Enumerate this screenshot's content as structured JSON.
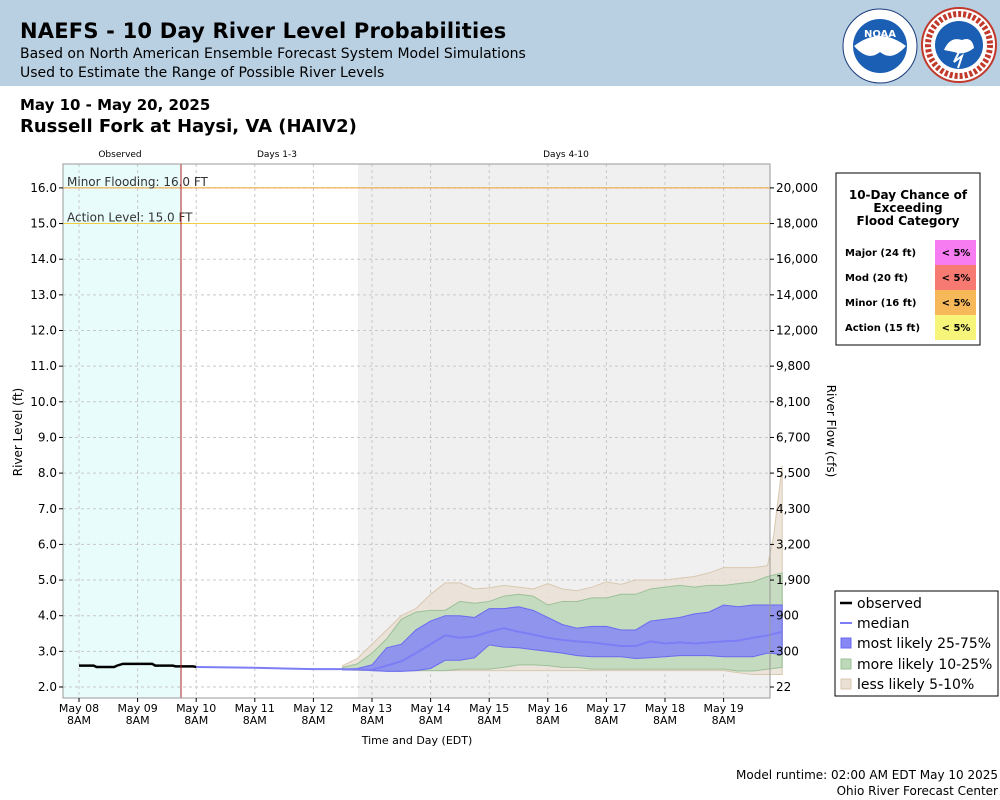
{
  "header": {
    "title": "NAEFS - 10 Day River Level Probabilities",
    "subtitle1": "Based on North American Ensemble Forecast System Model Simulations",
    "subtitle2": "Used to Estimate the Range of Possible River Levels",
    "date_range": "May 10 - May 20, 2025",
    "station": "Russell Fork at Haysi, VA (HAIV2)"
  },
  "logos": {
    "noara": "NOAA",
    "nws": "NATIONAL WEATHER SERVICE"
  },
  "footer": {
    "runtime": "Model runtime: 02:00 AM EDT May 10 2025",
    "center": "Ohio River Forecast Center"
  },
  "colors": {
    "observed_bg": "#e8fcfc",
    "forecast_bg": "#f0f0f0",
    "band_25_75": "#8787f5",
    "band_10_25": "#bcd8b8",
    "band_5_10": "#eae0d4",
    "median": "#7d7df5",
    "observed": "#000000",
    "minor_line": "#f0a030",
    "action_line": "#f0d040",
    "now_line": "#b02020"
  },
  "chart_data": {
    "type": "area",
    "ylabel": "River Level (ft)",
    "y2label": "River Flow (cfs)",
    "xlabel": "Time and Day (EDT)",
    "ylim": [
      1.75,
      17.0
    ],
    "xlim_days": [
      0,
      12
    ],
    "grid": true,
    "sections": [
      {
        "label": "Observed"
      },
      {
        "label": "Days 1-3"
      },
      {
        "label": "Days 4-10"
      }
    ],
    "y_ticks": [
      2.0,
      3.0,
      4.0,
      5.0,
      6.0,
      7.0,
      8.0,
      9.0,
      10.0,
      11.0,
      12.0,
      13.0,
      14.0,
      15.0,
      16.0
    ],
    "y_tick_labels": [
      "2.0",
      "3.0",
      "4.0",
      "5.0",
      "6.0",
      "7.0",
      "8.0",
      "9.0",
      "10.0",
      "11.0",
      "12.0",
      "13.0",
      "14.0",
      "15.0",
      "16.0"
    ],
    "y2_tick_labels": [
      "22",
      "300",
      "900",
      "1,900",
      "3,200",
      "4,300",
      "5,500",
      "6,700",
      "8,100",
      "9,800",
      "12,000",
      "14,000",
      "16,000",
      "18,000",
      "20,000"
    ],
    "x_ticks": [
      {
        "day": "May 08",
        "time": "8AM"
      },
      {
        "day": "May 09",
        "time": "8AM"
      },
      {
        "day": "May 10",
        "time": "8AM"
      },
      {
        "day": "May 11",
        "time": "8AM"
      },
      {
        "day": "May 12",
        "time": "8AM"
      },
      {
        "day": "May 13",
        "time": "8AM"
      },
      {
        "day": "May 14",
        "time": "8AM"
      },
      {
        "day": "May 15",
        "time": "8AM"
      },
      {
        "day": "May 16",
        "time": "8AM"
      },
      {
        "day": "May 17",
        "time": "8AM"
      },
      {
        "day": "May 18",
        "time": "8AM"
      },
      {
        "day": "May 19",
        "time": "8AM"
      }
    ],
    "thresholds": [
      {
        "name": "Minor Flooding: 16.0 FT",
        "value": 16.0
      },
      {
        "name": "Action Level: 15.0 FT",
        "value": 15.0
      }
    ],
    "observed": {
      "name": "observed",
      "x": [
        0,
        0.25,
        0.3,
        0.6,
        0.65,
        0.75,
        0.95,
        1.0,
        1.25,
        1.3,
        1.6,
        1.65,
        1.95,
        2.0
      ],
      "y": [
        2.6,
        2.6,
        2.56,
        2.56,
        2.6,
        2.65,
        2.65,
        2.65,
        2.65,
        2.6,
        2.6,
        2.58,
        2.58,
        2.56
      ]
    },
    "median": {
      "name": "median",
      "x": [
        2.0,
        2.5,
        3.0,
        3.5,
        4.0,
        4.5,
        5.0,
        5.25,
        5.5,
        5.75,
        6.0,
        6.25,
        6.5,
        6.75,
        7.0,
        7.25,
        7.5,
        7.75,
        8.0,
        8.25,
        8.5,
        8.75,
        9.0,
        9.25,
        9.5,
        9.75,
        10.0,
        10.25,
        10.5,
        10.75,
        11.0,
        11.25,
        11.5,
        11.75,
        12.0
      ],
      "y": [
        2.56,
        2.55,
        2.54,
        2.52,
        2.5,
        2.5,
        2.48,
        2.6,
        2.72,
        2.95,
        3.2,
        3.45,
        3.38,
        3.42,
        3.55,
        3.65,
        3.55,
        3.47,
        3.38,
        3.32,
        3.28,
        3.25,
        3.2,
        3.15,
        3.15,
        3.28,
        3.22,
        3.25,
        3.22,
        3.25,
        3.28,
        3.3,
        3.38,
        3.45,
        3.55
      ]
    },
    "bands": [
      {
        "name": "less likely 5-10%",
        "x": [
          4.5,
          4.75,
          5.0,
          5.25,
          5.5,
          5.75,
          6.0,
          6.25,
          6.5,
          6.75,
          7.0,
          7.25,
          7.5,
          7.75,
          8.0,
          8.25,
          8.5,
          8.75,
          9.0,
          9.25,
          9.5,
          9.75,
          10.0,
          10.25,
          10.5,
          10.75,
          11.0,
          11.25,
          11.5,
          11.75,
          11.85,
          12.0
        ],
        "upper": [
          2.6,
          2.8,
          3.2,
          3.6,
          4.0,
          4.2,
          4.6,
          4.92,
          4.92,
          4.75,
          4.78,
          4.85,
          4.8,
          4.75,
          4.9,
          4.75,
          4.7,
          4.8,
          4.95,
          4.88,
          5.0,
          5.0,
          5.0,
          5.05,
          5.1,
          5.2,
          5.35,
          5.35,
          5.35,
          5.4,
          6.2,
          8.2
        ],
        "lower": [
          2.48,
          2.47,
          2.46,
          2.46,
          2.46,
          2.46,
          2.46,
          2.46,
          2.46,
          2.46,
          2.46,
          2.46,
          2.46,
          2.46,
          2.46,
          2.46,
          2.46,
          2.46,
          2.46,
          2.46,
          2.46,
          2.46,
          2.46,
          2.46,
          2.46,
          2.46,
          2.46,
          2.4,
          2.35,
          2.35,
          2.35,
          2.35
        ]
      },
      {
        "name": "more likely 10-25%",
        "x": [
          4.5,
          4.75,
          5.0,
          5.25,
          5.5,
          5.75,
          6.0,
          6.25,
          6.5,
          6.75,
          7.0,
          7.25,
          7.5,
          7.75,
          8.0,
          8.25,
          8.5,
          8.75,
          9.0,
          9.25,
          9.5,
          9.75,
          10.0,
          10.25,
          10.5,
          10.75,
          11.0,
          11.25,
          11.5,
          11.75,
          12.0
        ],
        "upper": [
          2.55,
          2.65,
          2.95,
          3.35,
          3.9,
          4.1,
          4.15,
          4.15,
          4.4,
          4.35,
          4.4,
          4.55,
          4.6,
          4.55,
          4.3,
          4.4,
          4.4,
          4.5,
          4.5,
          4.6,
          4.6,
          4.75,
          4.8,
          4.85,
          4.8,
          4.85,
          4.85,
          4.9,
          4.95,
          5.1,
          5.2
        ],
        "lower": [
          2.48,
          2.47,
          2.46,
          2.46,
          2.46,
          2.46,
          2.46,
          2.46,
          2.5,
          2.5,
          2.5,
          2.55,
          2.62,
          2.62,
          2.6,
          2.55,
          2.55,
          2.5,
          2.5,
          2.5,
          2.5,
          2.5,
          2.5,
          2.5,
          2.5,
          2.5,
          2.5,
          2.45,
          2.45,
          2.5,
          2.55
        ]
      },
      {
        "name": "most likely 25-75%",
        "x": [
          4.5,
          4.75,
          5.0,
          5.25,
          5.5,
          5.75,
          6.0,
          6.25,
          6.5,
          6.75,
          7.0,
          7.25,
          7.5,
          7.75,
          8.0,
          8.25,
          8.5,
          8.75,
          9.0,
          9.25,
          9.5,
          9.75,
          10.0,
          10.25,
          10.5,
          10.75,
          11.0,
          11.25,
          11.5,
          11.75,
          12.0
        ],
        "upper": [
          2.5,
          2.52,
          2.62,
          3.1,
          3.2,
          3.6,
          3.85,
          4.0,
          4.0,
          3.95,
          4.2,
          4.2,
          4.25,
          4.15,
          3.95,
          3.75,
          3.65,
          3.7,
          3.7,
          3.6,
          3.6,
          3.85,
          3.9,
          3.95,
          4.05,
          4.1,
          4.3,
          4.25,
          4.3,
          4.3,
          4.3
        ],
        "lower": [
          2.48,
          2.48,
          2.46,
          2.44,
          2.44,
          2.46,
          2.52,
          2.75,
          2.75,
          2.82,
          3.18,
          3.12,
          3.1,
          3.05,
          3.0,
          2.95,
          2.88,
          2.85,
          2.85,
          2.85,
          2.8,
          2.82,
          2.85,
          2.88,
          2.88,
          2.88,
          2.85,
          2.85,
          2.85,
          2.95,
          2.92
        ]
      }
    ],
    "legend": [
      "observed",
      "median",
      "most likely 25-75%",
      "more likely 10-25%",
      "less likely 5-10%"
    ],
    "chance_table": {
      "title": [
        "10-Day Chance of",
        "Exceeding",
        "Flood Category"
      ],
      "rows": [
        {
          "label": "Major (24 ft)",
          "value": "< 5%",
          "color": "#f77cf2"
        },
        {
          "label": "Mod (20 ft)",
          "value": "< 5%",
          "color": "#f77a72"
        },
        {
          "label": "Minor (16 ft)",
          "value": "< 5%",
          "color": "#f7b85a"
        },
        {
          "label": "Action (15 ft)",
          "value": "< 5%",
          "color": "#f7f47a"
        }
      ]
    }
  }
}
